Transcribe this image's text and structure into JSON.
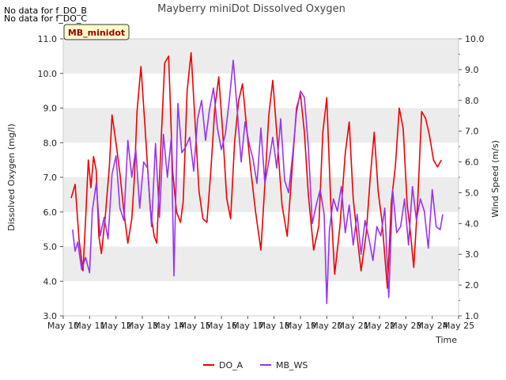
{
  "notes": [
    "No data for f_DO_B",
    "No data for f_DO_C"
  ],
  "site_badge": "MB_minidot",
  "colors": {
    "do_a": "#ee0000",
    "mb_ws": "#9933ee",
    "band": "#ececec",
    "badge_bg": "#ffffcc",
    "badge_text": "#990000"
  },
  "chart_data": {
    "type": "line",
    "title": "Mayberry miniDot Dissolved Oxygen",
    "xlabel": "Time",
    "ylabel": "Dissolved Oxygen (mg/l)",
    "y2label": "Wind Speed (m/s)",
    "xlim": [
      10,
      25
    ],
    "xticks": [
      "May 10",
      "May 11",
      "May 12",
      "May 13",
      "May 14",
      "May 15",
      "May 16",
      "May 17",
      "May 18",
      "May 19",
      "May 20",
      "May 21",
      "May 22",
      "May 23",
      "May 24",
      "May 25"
    ],
    "ylim": [
      3.0,
      11.0
    ],
    "yticks": [
      "3.0",
      "4.0",
      "5.0",
      "6.0",
      "7.0",
      "8.0",
      "9.0",
      "10.0",
      "11.0"
    ],
    "y2lim": [
      1.0,
      10.0
    ],
    "y2ticks": [
      "1.0",
      "2.0",
      "3.0",
      "4.0",
      "5.0",
      "6.0",
      "7.0",
      "8.0",
      "9.0",
      "10.0"
    ],
    "legend_position": "bottom-center",
    "series": [
      {
        "name": "DO_A",
        "axis": "left",
        "x": [
          10.3,
          10.45,
          10.6,
          10.75,
          10.85,
          10.95,
          11.05,
          11.15,
          11.25,
          11.35,
          11.45,
          11.6,
          11.75,
          11.85,
          12.0,
          12.15,
          12.3,
          12.45,
          12.6,
          12.7,
          12.8,
          12.95,
          13.1,
          13.3,
          13.45,
          13.55,
          13.7,
          13.85,
          14.0,
          14.15,
          14.3,
          14.45,
          14.55,
          14.7,
          14.85,
          15.0,
          15.15,
          15.3,
          15.45,
          15.6,
          15.75,
          15.9,
          16.05,
          16.2,
          16.35,
          16.5,
          16.65,
          16.8,
          16.95,
          17.1,
          17.3,
          17.5,
          17.65,
          17.8,
          17.95,
          18.1,
          18.3,
          18.5,
          18.7,
          18.85,
          19.0,
          19.15,
          19.3,
          19.5,
          19.7,
          19.85,
          20.0,
          20.15,
          20.3,
          20.5,
          20.7,
          20.85,
          21.0,
          21.15,
          21.3,
          21.5,
          21.65,
          21.8,
          21.95,
          22.1,
          22.3,
          22.45,
          22.6,
          22.75,
          22.9,
          23.05,
          23.15,
          23.3,
          23.45,
          23.6,
          23.75,
          23.9,
          24.05,
          24.2,
          24.35
        ],
        "values": [
          6.4,
          6.8,
          5.2,
          4.3,
          5.8,
          7.5,
          6.7,
          7.6,
          7.2,
          5.3,
          4.8,
          5.9,
          7.3,
          8.8,
          8.0,
          7.1,
          6.0,
          5.1,
          5.8,
          7.0,
          8.9,
          10.2,
          8.5,
          6.1,
          5.3,
          5.1,
          7.8,
          10.3,
          10.5,
          7.2,
          6.0,
          5.7,
          6.3,
          9.5,
          10.6,
          8.6,
          6.6,
          5.8,
          5.7,
          7.2,
          9.0,
          9.9,
          8.3,
          6.4,
          5.8,
          8.0,
          9.2,
          9.7,
          8.5,
          7.3,
          6.0,
          4.9,
          6.8,
          8.8,
          9.8,
          8.3,
          6.2,
          5.3,
          7.4,
          9.0,
          9.4,
          8.3,
          6.5,
          4.9,
          5.6,
          8.3,
          9.3,
          6.3,
          4.2,
          5.6,
          7.7,
          8.6,
          6.4,
          5.3,
          4.3,
          5.4,
          7.0,
          8.3,
          6.6,
          5.7,
          3.8,
          6.3,
          7.3,
          9.0,
          8.4,
          6.2,
          5.6,
          4.4,
          6.3,
          8.9,
          8.7,
          8.2,
          7.5,
          7.3,
          7.5
        ]
      },
      {
        "name": "MB_WS",
        "axis": "right",
        "x": [
          10.35,
          10.45,
          10.55,
          10.7,
          10.85,
          11.0,
          11.1,
          11.25,
          11.4,
          11.55,
          11.7,
          11.85,
          12.0,
          12.15,
          12.3,
          12.45,
          12.6,
          12.75,
          12.9,
          13.05,
          13.2,
          13.35,
          13.5,
          13.65,
          13.8,
          13.95,
          14.1,
          14.2,
          14.35,
          14.5,
          14.65,
          14.8,
          14.95,
          15.1,
          15.25,
          15.4,
          15.55,
          15.7,
          15.85,
          16.0,
          16.15,
          16.3,
          16.45,
          16.6,
          16.75,
          16.9,
          17.05,
          17.2,
          17.35,
          17.5,
          17.65,
          17.8,
          17.95,
          18.1,
          18.25,
          18.4,
          18.55,
          18.7,
          18.85,
          19.0,
          19.15,
          19.3,
          19.45,
          19.6,
          19.75,
          19.9,
          20.0,
          20.1,
          20.25,
          20.4,
          20.55,
          20.7,
          20.85,
          21.0,
          21.15,
          21.3,
          21.45,
          21.6,
          21.75,
          21.9,
          22.05,
          22.2,
          22.35,
          22.5,
          22.65,
          22.8,
          22.95,
          23.1,
          23.25,
          23.4,
          23.55,
          23.7,
          23.85,
          24.0,
          24.15,
          24.3,
          24.4
        ],
        "values": [
          3.8,
          3.1,
          3.4,
          2.5,
          2.9,
          2.4,
          4.4,
          5.3,
          3.6,
          4.2,
          3.5,
          5.6,
          6.2,
          4.5,
          4.1,
          6.7,
          5.5,
          6.4,
          4.5,
          6.0,
          5.8,
          3.9,
          6.6,
          4.2,
          6.9,
          5.5,
          6.8,
          2.3,
          7.9,
          6.3,
          6.5,
          6.8,
          5.7,
          7.4,
          8.0,
          6.7,
          7.7,
          8.4,
          7.1,
          6.4,
          6.9,
          8.0,
          9.3,
          7.7,
          6.0,
          7.3,
          6.6,
          6.1,
          5.3,
          7.1,
          5.3,
          6.0,
          6.8,
          5.8,
          7.4,
          5.4,
          5.0,
          6.2,
          7.6,
          8.3,
          8.1,
          6.5,
          4.0,
          4.6,
          5.1,
          4.3,
          1.4,
          3.8,
          4.8,
          4.4,
          5.2,
          3.7,
          4.6,
          3.3,
          4.3,
          3.0,
          4.1,
          3.5,
          2.8,
          3.9,
          3.6,
          4.5,
          1.6,
          5.1,
          3.7,
          3.9,
          4.8,
          3.3,
          5.2,
          4.1,
          4.8,
          4.4,
          3.2,
          5.1,
          3.9,
          3.8,
          4.3
        ]
      }
    ]
  }
}
